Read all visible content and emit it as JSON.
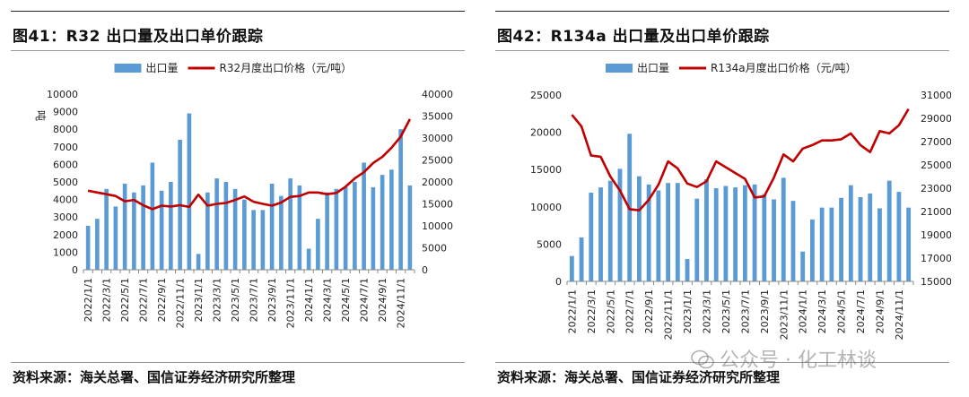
{
  "panels": [
    {
      "title": "图41：R32 出口量及出口单价跟踪",
      "source": "资料来源：海关总署、国信证券经济研究所整理"
    },
    {
      "title": "图42：R134a 出口量及出口单价跟踪",
      "source": "资料来源：海关总署、国信证券经济研究所整理"
    }
  ],
  "watermark": "公众号 · 化工林谈",
  "colors": {
    "bar": "#5b9bd5",
    "line": "#c00000"
  },
  "chart_data": [
    {
      "type": "bar",
      "title": "",
      "legend": [
        "出口量",
        "R32月度出口价格（元/吨）"
      ],
      "legend_position": "top",
      "ylabel": "吨",
      "ylim": [
        0,
        10000
      ],
      "y_ticks": [
        0,
        1000,
        2000,
        3000,
        4000,
        5000,
        6000,
        7000,
        8000,
        9000,
        10000
      ],
      "y2lim": [
        0,
        40000
      ],
      "y2_ticks": [
        0,
        5000,
        10000,
        15000,
        20000,
        25000,
        30000,
        35000,
        40000
      ],
      "x_tick_labels": [
        "2022/1/1",
        "2022/3/1",
        "2022/5/1",
        "2022/7/1",
        "2022/9/1",
        "2022/11/1",
        "2023/1/1",
        "2023/3/1",
        "2023/5/1",
        "2023/7/1",
        "2023/9/1",
        "2023/11/1",
        "2024/1/1",
        "2024/3/1",
        "2024/5/1",
        "2024/7/1",
        "2024/9/1",
        "2024/11/1"
      ],
      "categories": [
        "2022-01",
        "2022-02",
        "2022-03",
        "2022-04",
        "2022-05",
        "2022-06",
        "2022-07",
        "2022-08",
        "2022-09",
        "2022-10",
        "2022-11",
        "2022-12",
        "2023-01",
        "2023-02",
        "2023-03",
        "2023-04",
        "2023-05",
        "2023-06",
        "2023-07",
        "2023-08",
        "2023-09",
        "2023-10",
        "2023-11",
        "2023-12",
        "2024-01",
        "2024-02",
        "2024-03",
        "2024-04",
        "2024-05",
        "2024-06",
        "2024-07",
        "2024-08",
        "2024-09",
        "2024-10",
        "2024-11",
        "2024-12"
      ],
      "series": [
        {
          "name": "出口量",
          "type": "bar",
          "axis": "left",
          "values": [
            2500,
            2900,
            4600,
            3600,
            4900,
            4400,
            4800,
            6100,
            4500,
            5000,
            7400,
            8900,
            900,
            4400,
            5200,
            5000,
            4600,
            4000,
            3400,
            3400,
            4900,
            4200,
            5200,
            4800,
            1200,
            2900,
            4400,
            4600,
            4700,
            5000,
            6100,
            4700,
            5400,
            5700,
            8000,
            4800
          ]
        },
        {
          "name": "R32月度出口价格（元/吨）",
          "type": "line",
          "axis": "right",
          "values": [
            18000,
            17600,
            17200,
            16800,
            15600,
            15900,
            14700,
            13800,
            14600,
            14400,
            14700,
            14300,
            17100,
            14600,
            15000,
            15200,
            15900,
            16700,
            15500,
            15000,
            14600,
            15300,
            16600,
            16800,
            17600,
            17600,
            17200,
            17500,
            18900,
            20800,
            22200,
            24300,
            25700,
            27800,
            30300,
            34300
          ]
        }
      ]
    },
    {
      "type": "bar",
      "title": "",
      "legend": [
        "出口量",
        "R134a月度出口价格（元/吨）"
      ],
      "legend_position": "top",
      "ylabel": "",
      "ylim": [
        0,
        25000
      ],
      "y_ticks": [
        0,
        5000,
        10000,
        15000,
        20000,
        25000
      ],
      "y2lim": [
        15000,
        31000
      ],
      "y2_ticks": [
        15000,
        17000,
        19000,
        21000,
        23000,
        25000,
        27000,
        29000,
        31000
      ],
      "x_tick_labels": [
        "2022/1/1",
        "2022/3/1",
        "2022/5/1",
        "2022/7/1",
        "2022/9/1",
        "2022/11/1",
        "2023/1/1",
        "2023/3/1",
        "2023/5/1",
        "2023/7/1",
        "2023/9/1",
        "2023/11/1",
        "2024/1/1",
        "2024/3/1",
        "2024/5/1",
        "2024/7/1",
        "2024/9/1",
        "2024/11/1"
      ],
      "categories": [
        "2022-01",
        "2022-02",
        "2022-03",
        "2022-04",
        "2022-05",
        "2022-06",
        "2022-07",
        "2022-08",
        "2022-09",
        "2022-10",
        "2022-11",
        "2022-12",
        "2023-01",
        "2023-02",
        "2023-03",
        "2023-04",
        "2023-05",
        "2023-06",
        "2023-07",
        "2023-08",
        "2023-09",
        "2023-10",
        "2023-11",
        "2023-12",
        "2024-01",
        "2024-02",
        "2024-03",
        "2024-04",
        "2024-05",
        "2024-06",
        "2024-07",
        "2024-08",
        "2024-09",
        "2024-10",
        "2024-11",
        "2024-12"
      ],
      "series": [
        {
          "name": "出口量",
          "type": "bar",
          "axis": "left",
          "values": [
            3400,
            5900,
            11900,
            12600,
            13500,
            15100,
            19800,
            14100,
            13000,
            12200,
            13200,
            13200,
            3000,
            11100,
            13700,
            12500,
            12800,
            12600,
            12900,
            13000,
            11700,
            11000,
            13900,
            10800,
            4000,
            8300,
            9900,
            9900,
            11200,
            12900,
            11300,
            11800,
            9800,
            13500,
            12000,
            9900
          ]
        },
        {
          "name": "R134a月度出口价格（元/吨）",
          "type": "line",
          "axis": "right",
          "values": [
            29300,
            28300,
            25800,
            25700,
            24000,
            22800,
            21200,
            21100,
            22000,
            23300,
            25300,
            24700,
            23400,
            23100,
            23600,
            25300,
            24800,
            24300,
            23800,
            22200,
            22300,
            23900,
            25900,
            25300,
            26400,
            26700,
            27100,
            27100,
            27200,
            27700,
            26700,
            26100,
            27900,
            27700,
            28400,
            29800
          ]
        }
      ]
    }
  ]
}
